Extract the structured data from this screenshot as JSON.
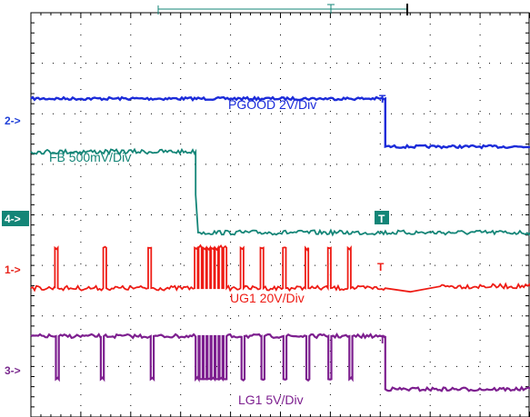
{
  "chart_data": {
    "type": "line",
    "title": "",
    "grid": true,
    "time_divisions": 10,
    "voltage_divisions": 8,
    "markers": [
      {
        "id": "2",
        "label": "2->",
        "color": "#1f3fd8"
      },
      {
        "id": "4",
        "label": "4->",
        "color": "#ffffff",
        "bg": "#138577"
      },
      {
        "id": "1",
        "label": "1->",
        "color": "#e8231a"
      },
      {
        "id": "3",
        "label": "3->",
        "color": "#7a2a8e"
      }
    ],
    "trigger_marker": "T",
    "series": [
      {
        "name": "PGOOD 2V/Div",
        "channel": "2",
        "color": "#1b2bd9",
        "x": [
          0,
          7.1,
          7.1,
          10
        ],
        "y_div": [
          6.3,
          6.3,
          5.35,
          5.35
        ]
      },
      {
        "name": "FB 500mV/Div",
        "channel": "4",
        "color": "#138577",
        "x": [
          0,
          3.3,
          3.3,
          3.35,
          10
        ],
        "y_div": [
          5.25,
          5.25,
          4.4,
          3.65,
          3.65
        ]
      },
      {
        "name": "UG1 20V/Div",
        "channel": "1",
        "color": "#ee1c15",
        "baseline_div": 2.55,
        "high_div": 3.35,
        "pulse_times": [
          0.48,
          1.45,
          2.35,
          3.28,
          3.36,
          3.45,
          3.53,
          3.61,
          3.69,
          3.77,
          3.86,
          4.2,
          4.6,
          5.05,
          5.5,
          5.95,
          6.35
        ],
        "pulse_width": 0.06
      },
      {
        "name": "LG1 5V/Div",
        "channel": "3",
        "color": "#7d1f8f",
        "baseline_div": 1.6,
        "low_div": 0.75,
        "dip_times": [
          0.5,
          1.4,
          2.4,
          3.3,
          3.38,
          3.46,
          3.54,
          3.62,
          3.7,
          3.78,
          3.86,
          4.22,
          4.62,
          5.06,
          5.52,
          5.96,
          6.38
        ],
        "dip_width": 0.06,
        "after_x": 7.1,
        "after_level_div": 0.55
      }
    ]
  },
  "labels": {
    "pgood": "PGOOD 2V/Div",
    "fb": "FB 500mV/Div",
    "ug1": "UG1 20V/Div",
    "lg1": "LG1 5V/Div",
    "marker2": "2->",
    "marker4": "4->",
    "marker1": "1->",
    "marker3": "3->",
    "trig": "T"
  }
}
